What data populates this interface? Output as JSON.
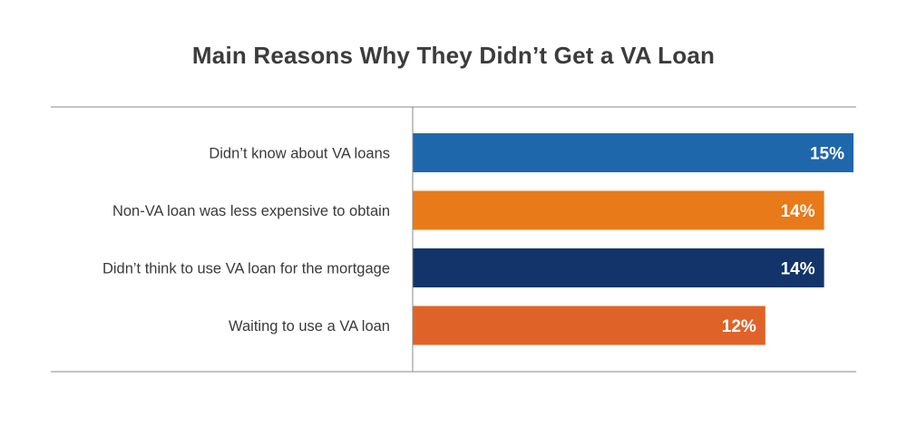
{
  "chart_data": {
    "type": "bar",
    "orientation": "horizontal",
    "title": "Main Reasons Why They Didn’t Get a VA Loan",
    "categories": [
      "Didn’t know about VA loans",
      "Non-VA loan was less expensive to obtain",
      "Didn’t think to use VA loan for the mortgage",
      "Waiting to use a VA loan"
    ],
    "values": [
      15,
      14,
      14,
      12
    ],
    "value_labels": [
      "15%",
      "14%",
      "14%",
      "12%"
    ],
    "bar_colors": [
      "#1f67ab",
      "#e87a1a",
      "#12346a",
      "#df6329"
    ],
    "unit": "%",
    "xlim": [
      0,
      15
    ],
    "xlabel": "",
    "ylabel": "",
    "grid": false,
    "legend": "none"
  },
  "colors": {
    "title": "#3c3c3c",
    "label": "#3a3a3a",
    "axis": "#8a8a8a",
    "value_text": "#ffffff"
  }
}
